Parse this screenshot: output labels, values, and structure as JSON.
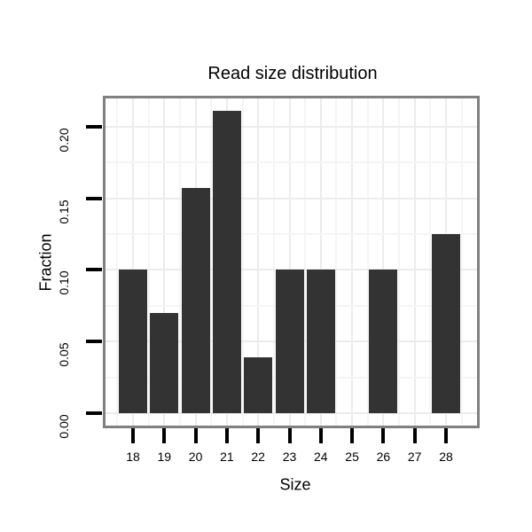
{
  "chart_data": {
    "type": "bar",
    "title": "Read size distribution",
    "xlabel": "Size",
    "ylabel": "Fraction",
    "categories": [
      "18",
      "19",
      "20",
      "21",
      "22",
      "23",
      "24",
      "25",
      "26",
      "27",
      "28"
    ],
    "values": [
      0.1,
      0.07,
      0.157,
      0.211,
      0.039,
      0.1,
      0.1,
      0,
      0.1,
      0,
      0.125
    ],
    "ylim": [
      -0.0106,
      0.2216
    ],
    "ytick_labels": [
      "0.00",
      "0.05",
      "0.10",
      "0.15",
      "0.20"
    ],
    "ytick_values": [
      0,
      0.05,
      0.1,
      0.15,
      0.2
    ],
    "y_minor_gridlines": [
      0.025,
      0.075,
      0.125,
      0.175
    ],
    "grid": "major and minor, horizontal and vertical",
    "legend_position": "none",
    "colors": {
      "bar_fill": "#333333",
      "panel_border": "#808080",
      "grid_major": "#ececec",
      "grid_minor": "#f5f5f5",
      "axis_tick": "#000000",
      "text": "#000000",
      "background": "#ffffff"
    }
  }
}
